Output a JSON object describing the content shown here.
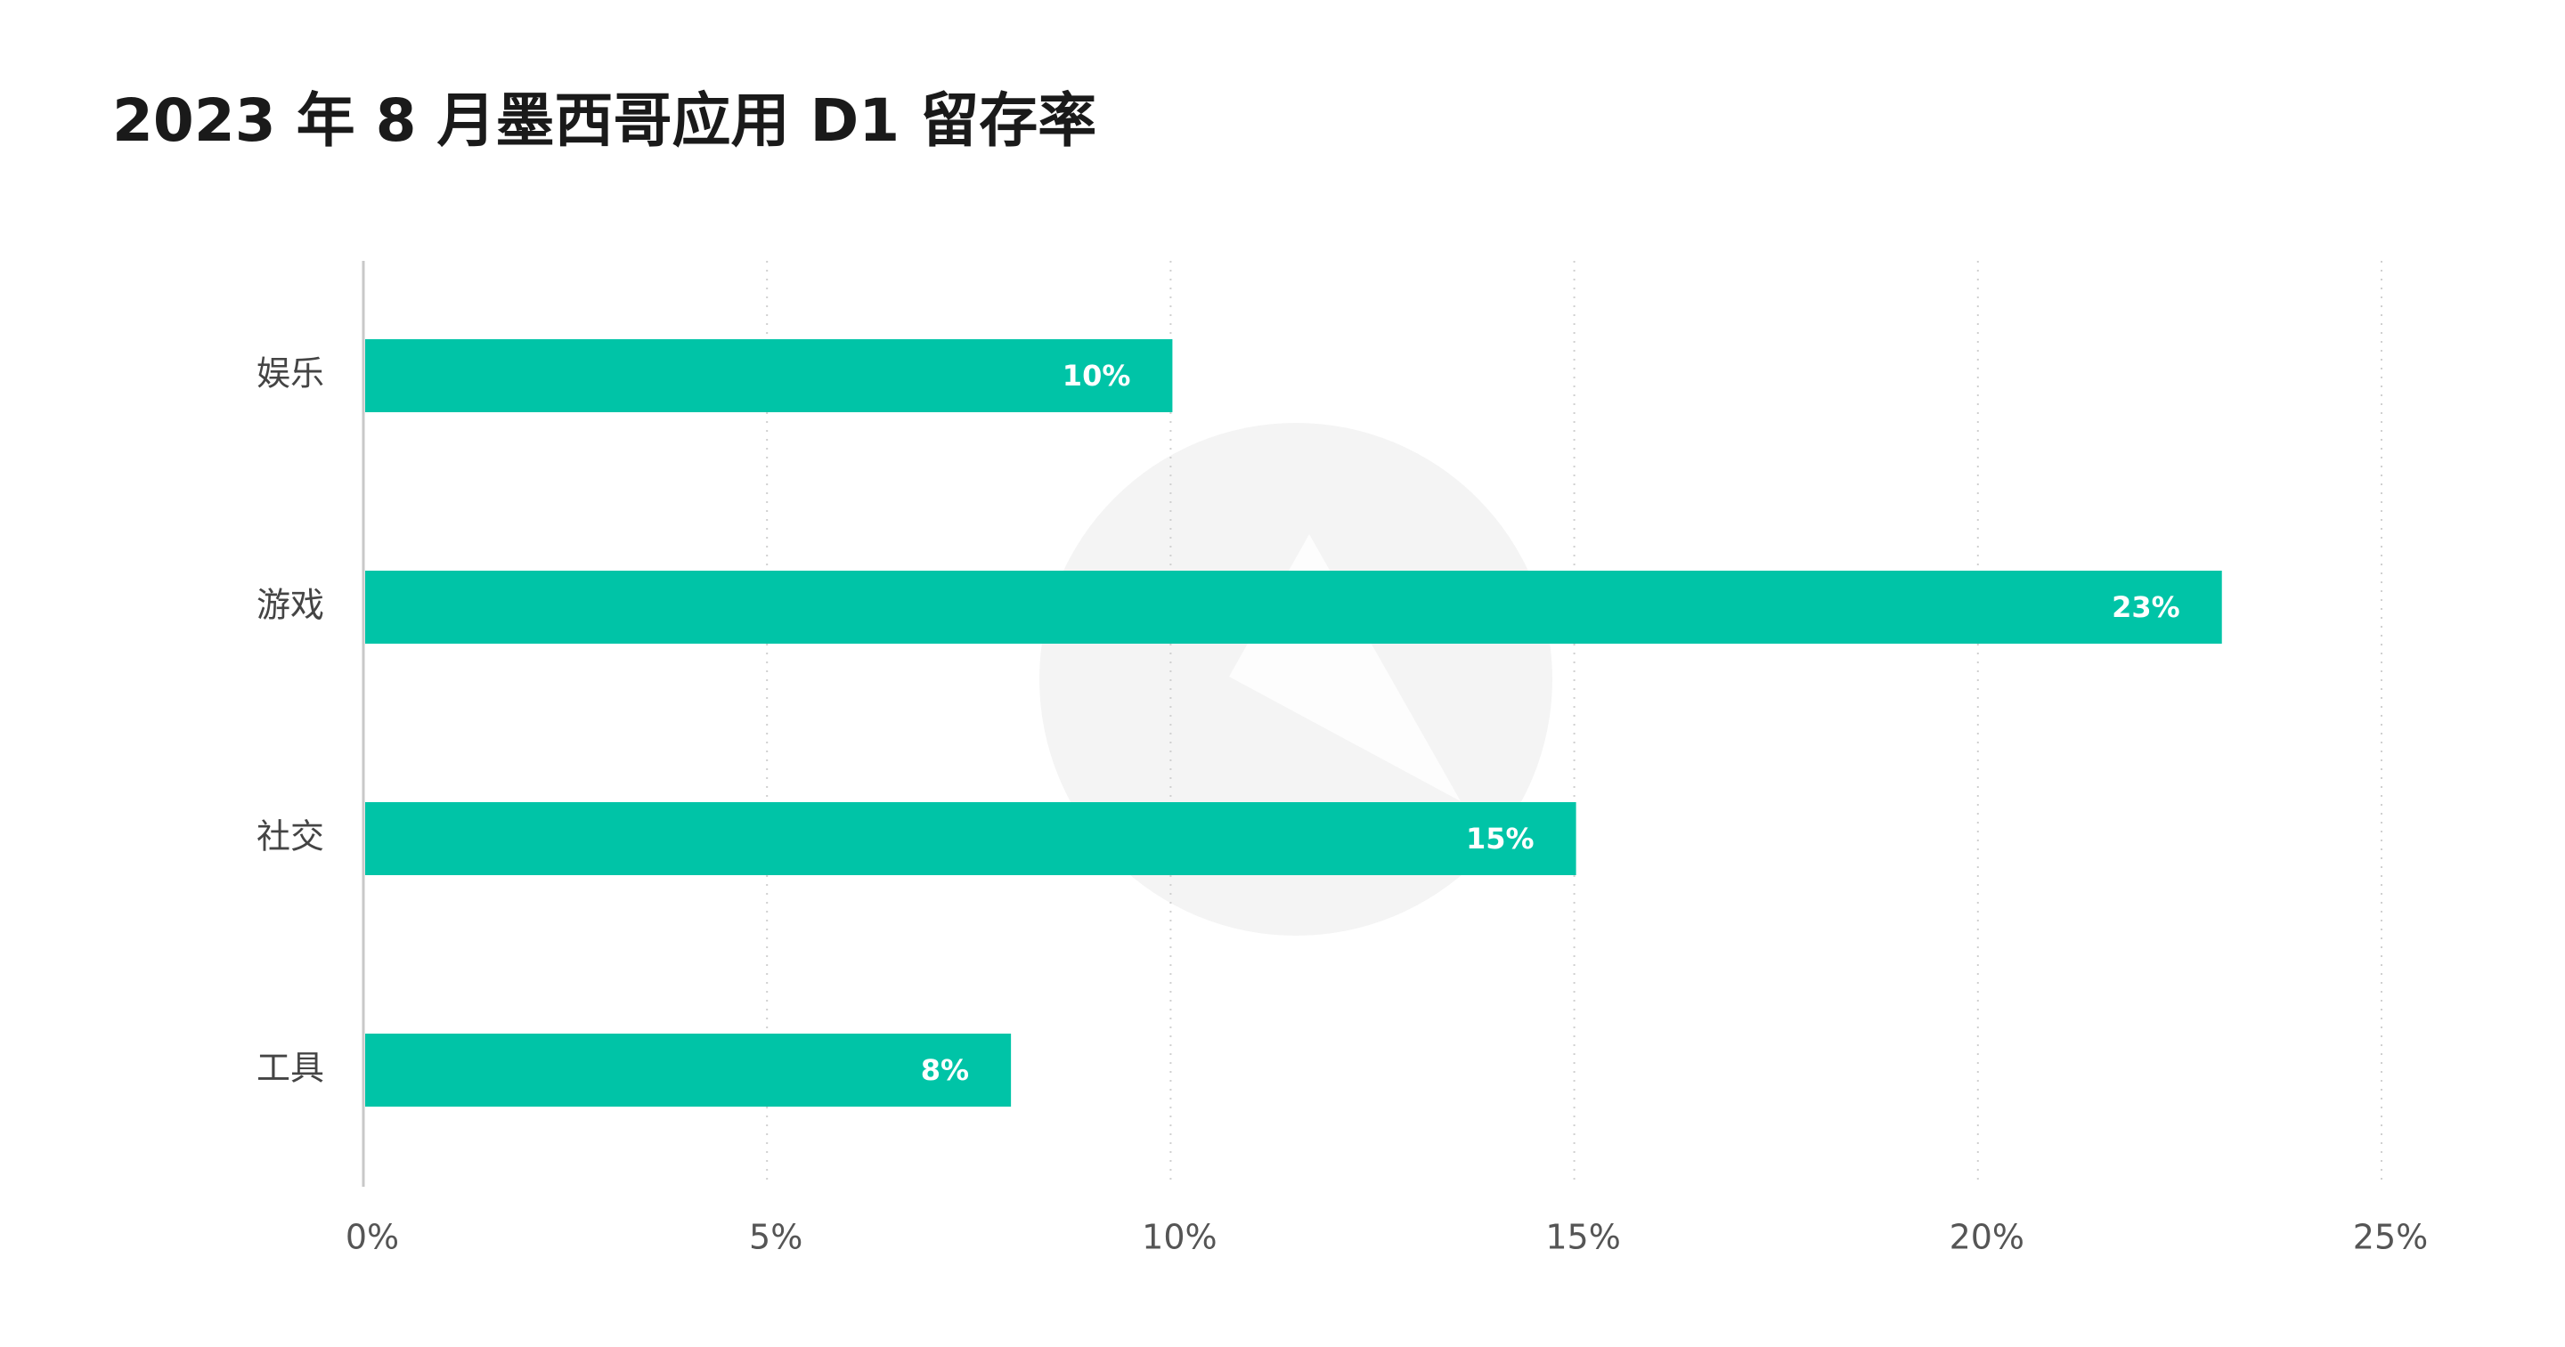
{
  "chart_data": {
    "type": "hbar",
    "title": "2023 年 8 月墨西哥应用 D1 留存率",
    "categories": [
      "娱乐",
      "游戏",
      "社交",
      "工具"
    ],
    "values": [
      10,
      23,
      15,
      8
    ],
    "value_labels": [
      "10%",
      "23%",
      "15%",
      "8%"
    ],
    "color": "#00c4a7",
    "xlim": [
      0,
      25
    ],
    "xticks": [
      {
        "value": 0,
        "label": "0%"
      },
      {
        "value": 5,
        "label": "5%"
      },
      {
        "value": 10,
        "label": "10%"
      },
      {
        "value": 15,
        "label": "15%"
      },
      {
        "value": 20,
        "label": "20%"
      },
      {
        "value": 25,
        "label": "25%"
      }
    ],
    "grid": true
  }
}
